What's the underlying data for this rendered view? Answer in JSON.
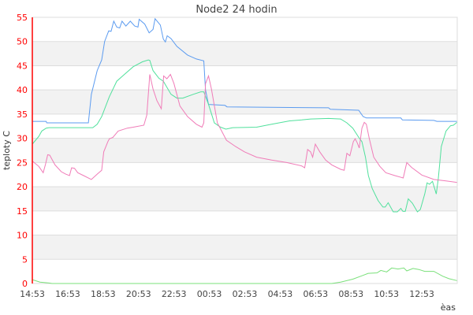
{
  "chart_data": {
    "type": "line",
    "title": "Node2 24 hodin",
    "xlabel": "èas",
    "ylabel": "teploty C",
    "ylim": [
      0,
      55
    ],
    "yticks": [
      "0",
      "5",
      "10",
      "15",
      "20",
      "25",
      "30",
      "35",
      "40",
      "45",
      "50",
      "55"
    ],
    "xticks": [
      "14:53",
      "16:53",
      "18:53",
      "20:53",
      "22:53",
      "00:53",
      "02:53",
      "04:53",
      "06:53",
      "08:53",
      "10:53",
      "12:53"
    ],
    "x_start": "14:53",
    "grid": "alternating horizontal bands",
    "colors": {
      "axis": "#ff0000",
      "band": "#f2f2f2"
    },
    "series": [
      {
        "color": "#5b9bf0",
        "points": [
          [
            "14:53",
            33.5
          ],
          [
            "15:40",
            33.5
          ],
          [
            "15:42",
            33.2
          ],
          [
            "18:03",
            33.2
          ],
          [
            "18:13",
            39.1
          ],
          [
            "18:33",
            44
          ],
          [
            "18:48",
            46.2
          ],
          [
            "18:58",
            50
          ],
          [
            "19:12",
            52.2
          ],
          [
            "19:20",
            52.1
          ],
          [
            "19:29",
            54.2
          ],
          [
            "19:39",
            53
          ],
          [
            "19:49",
            52.8
          ],
          [
            "19:57",
            54.2
          ],
          [
            "20:10",
            53.2
          ],
          [
            "20:25",
            54.2
          ],
          [
            "20:40",
            53.2
          ],
          [
            "20:51",
            53
          ],
          [
            "20:55",
            54.6
          ],
          [
            "21:14",
            53.6
          ],
          [
            "21:29",
            51.8
          ],
          [
            "21:42",
            52.5
          ],
          [
            "21:49",
            54.7
          ],
          [
            "22:07",
            53.4
          ],
          [
            "22:17",
            50.5
          ],
          [
            "22:24",
            49.9
          ],
          [
            "22:30",
            51.2
          ],
          [
            "22:43",
            50.6
          ],
          [
            "23:03",
            49
          ],
          [
            "23:39",
            47.2
          ],
          [
            "00:09",
            46.4
          ],
          [
            "00:34",
            46
          ],
          [
            "00:40",
            40
          ],
          [
            "00:50",
            37
          ],
          [
            "01:46",
            36.8
          ],
          [
            "01:53",
            36.5
          ],
          [
            "07:37",
            36.3
          ],
          [
            "07:43",
            36
          ],
          [
            "09:19",
            35.8
          ],
          [
            "09:34",
            34.5
          ],
          [
            "09:45",
            34.2
          ],
          [
            "11:42",
            34.2
          ],
          [
            "11:47",
            33.8
          ],
          [
            "13:34",
            33.7
          ],
          [
            "13:44",
            33.5
          ],
          [
            "14:52",
            33.5
          ]
        ]
      },
      {
        "color": "#50e09c",
        "points": [
          [
            "14:53",
            28.8
          ],
          [
            "15:15",
            30.4
          ],
          [
            "15:25",
            31.5
          ],
          [
            "15:40",
            32.1
          ],
          [
            "15:50",
            32.2
          ],
          [
            "18:18",
            32.2
          ],
          [
            "18:33",
            32.9
          ],
          [
            "18:48",
            34.5
          ],
          [
            "19:14",
            38.6
          ],
          [
            "19:39",
            41.8
          ],
          [
            "20:05",
            43.2
          ],
          [
            "20:35",
            44.8
          ],
          [
            "21:06",
            45.8
          ],
          [
            "21:26",
            46.2
          ],
          [
            "21:31",
            46.1
          ],
          [
            "21:42",
            44
          ],
          [
            "22:02",
            42.4
          ],
          [
            "22:17",
            41.8
          ],
          [
            "22:43",
            39.1
          ],
          [
            "23:03",
            38.3
          ],
          [
            "23:23",
            38.3
          ],
          [
            "23:59",
            39.1
          ],
          [
            "00:24",
            39.6
          ],
          [
            "00:34",
            39.6
          ],
          [
            "00:50",
            37
          ],
          [
            "01:10",
            33.2
          ],
          [
            "01:31",
            32.3
          ],
          [
            "01:49",
            31.9
          ],
          [
            "02:12",
            32.2
          ],
          [
            "03:33",
            32.3
          ],
          [
            "04:24",
            32.9
          ],
          [
            "05:25",
            33.6
          ],
          [
            "06:06",
            33.8
          ],
          [
            "06:36",
            34
          ],
          [
            "07:37",
            34.1
          ],
          [
            "08:18",
            34
          ],
          [
            "08:39",
            33.2
          ],
          [
            "08:59",
            32.1
          ],
          [
            "09:19",
            30.2
          ],
          [
            "09:30",
            29.3
          ],
          [
            "09:42",
            26.1
          ],
          [
            "09:52",
            22.3
          ],
          [
            "10:05",
            19.6
          ],
          [
            "10:25",
            17.1
          ],
          [
            "10:41",
            15.8
          ],
          [
            "10:49",
            15.8
          ],
          [
            "10:59",
            16.7
          ],
          [
            "11:16",
            14.8
          ],
          [
            "11:30",
            14.8
          ],
          [
            "11:42",
            15.5
          ],
          [
            "11:49",
            14.9
          ],
          [
            "11:57",
            14.9
          ],
          [
            "12:07",
            17.5
          ],
          [
            "12:21",
            16.6
          ],
          [
            "12:38",
            14.8
          ],
          [
            "12:48",
            15.3
          ],
          [
            "13:03",
            18.5
          ],
          [
            "13:11",
            20.8
          ],
          [
            "13:19",
            20.5
          ],
          [
            "13:29",
            21.1
          ],
          [
            "13:42",
            18.5
          ],
          [
            "13:49",
            21.7
          ],
          [
            "13:59",
            28.3
          ],
          [
            "14:15",
            31.5
          ],
          [
            "14:30",
            32.6
          ],
          [
            "14:40",
            32.7
          ],
          [
            "14:52",
            33.3
          ]
        ]
      },
      {
        "color": "#f07cb8",
        "points": [
          [
            "14:53",
            25.3
          ],
          [
            "15:15",
            24.2
          ],
          [
            "15:30",
            22.9
          ],
          [
            "15:38",
            24.7
          ],
          [
            "15:45",
            26.6
          ],
          [
            "15:52",
            26.5
          ],
          [
            "16:10",
            24.5
          ],
          [
            "16:31",
            23.1
          ],
          [
            "16:46",
            22.6
          ],
          [
            "16:59",
            22.3
          ],
          [
            "17:06",
            23.9
          ],
          [
            "17:16",
            23.8
          ],
          [
            "17:27",
            22.9
          ],
          [
            "17:47",
            22.3
          ],
          [
            "18:13",
            21.5
          ],
          [
            "18:33",
            22.6
          ],
          [
            "18:48",
            23.4
          ],
          [
            "18:55",
            27.2
          ],
          [
            "19:09",
            29.3
          ],
          [
            "19:14",
            29.9
          ],
          [
            "19:26",
            30.2
          ],
          [
            "19:44",
            31.5
          ],
          [
            "20:15",
            32.1
          ],
          [
            "20:35",
            32.3
          ],
          [
            "21:11",
            32.7
          ],
          [
            "21:21",
            34.8
          ],
          [
            "21:31",
            43.2
          ],
          [
            "21:42",
            40.2
          ],
          [
            "21:55",
            37.8
          ],
          [
            "22:10",
            36.1
          ],
          [
            "22:18",
            42.9
          ],
          [
            "22:29",
            42.3
          ],
          [
            "22:41",
            43.2
          ],
          [
            "22:53",
            41.3
          ],
          [
            "23:13",
            36.7
          ],
          [
            "23:39",
            34.5
          ],
          [
            "00:09",
            32.9
          ],
          [
            "00:28",
            32.3
          ],
          [
            "00:34",
            33.2
          ],
          [
            "00:40",
            41.3
          ],
          [
            "00:50",
            42.9
          ],
          [
            "01:00",
            40.2
          ],
          [
            "01:20",
            33.2
          ],
          [
            "01:51",
            29.6
          ],
          [
            "02:22",
            28.3
          ],
          [
            "02:52",
            27.2
          ],
          [
            "03:33",
            26.1
          ],
          [
            "04:24",
            25.5
          ],
          [
            "05:15",
            25
          ],
          [
            "06:06",
            24.3
          ],
          [
            "06:16",
            23.9
          ],
          [
            "06:26",
            27.7
          ],
          [
            "06:36",
            27.2
          ],
          [
            "06:43",
            26.1
          ],
          [
            "06:52",
            28.8
          ],
          [
            "07:07",
            27.2
          ],
          [
            "07:27",
            25.5
          ],
          [
            "07:48",
            24.5
          ],
          [
            "08:18",
            23.6
          ],
          [
            "08:30",
            23.4
          ],
          [
            "08:39",
            26.9
          ],
          [
            "08:49",
            26.4
          ],
          [
            "09:01",
            29.3
          ],
          [
            "09:07",
            29.9
          ],
          [
            "09:14",
            29.1
          ],
          [
            "09:21",
            28
          ],
          [
            "09:30",
            32.1
          ],
          [
            "09:38",
            33.3
          ],
          [
            "09:45",
            32.9
          ],
          [
            "09:55",
            29.9
          ],
          [
            "10:10",
            26.1
          ],
          [
            "10:31",
            24.2
          ],
          [
            "10:51",
            22.9
          ],
          [
            "11:22",
            22.3
          ],
          [
            "11:50",
            21.8
          ],
          [
            "12:02",
            25
          ],
          [
            "12:18",
            24
          ],
          [
            "12:53",
            22.4
          ],
          [
            "13:34",
            21.5
          ],
          [
            "14:15",
            21.2
          ],
          [
            "14:52",
            20.9
          ]
        ]
      },
      {
        "color": "#7ae07a",
        "points": [
          [
            "14:53",
            0.8
          ],
          [
            "15:19",
            0.3
          ],
          [
            "15:50",
            0.1
          ],
          [
            "16:00",
            0
          ],
          [
            "07:48",
            0
          ],
          [
            "08:18",
            0.3
          ],
          [
            "08:59",
            0.9
          ],
          [
            "09:30",
            1.6
          ],
          [
            "09:51",
            2.1
          ],
          [
            "10:21",
            2.2
          ],
          [
            "10:34",
            2.7
          ],
          [
            "10:54",
            2.4
          ],
          [
            "11:11",
            3.2
          ],
          [
            "11:32",
            3
          ],
          [
            "11:52",
            3.2
          ],
          [
            "12:02",
            2.6
          ],
          [
            "12:23",
            3.1
          ],
          [
            "12:43",
            2.9
          ],
          [
            "13:03",
            2.5
          ],
          [
            "13:34",
            2.5
          ],
          [
            "14:04",
            1.5
          ],
          [
            "14:25",
            1
          ],
          [
            "14:52",
            0.6
          ]
        ]
      }
    ]
  }
}
